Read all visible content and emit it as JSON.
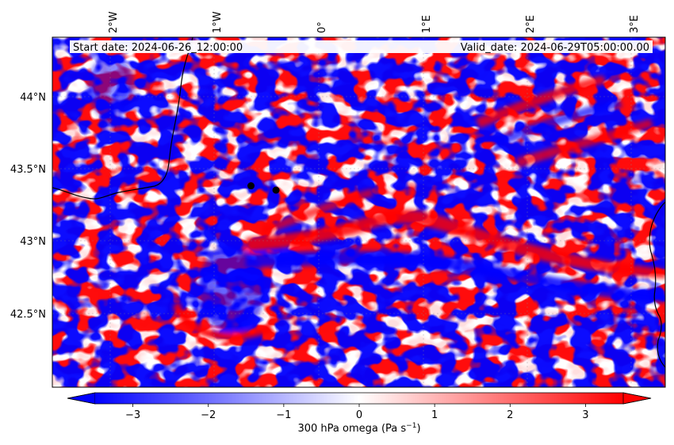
{
  "map": {
    "start_date_label": "Start date: 2024-06-26_12:00:00",
    "valid_date_label": "Valid_date: 2024-06-29T05:00:00.00",
    "lon_ticks": [
      "2°W",
      "1°W",
      "0°",
      "1°E",
      "2°E",
      "3°E"
    ],
    "lat_ticks": [
      "44°N",
      "43.5°N",
      "43°N",
      "42.5°N"
    ],
    "points": [
      {
        "name": "marker-1",
        "lon": -0.65,
        "lat": 43.38
      },
      {
        "name": "marker-2",
        "lon": -0.41,
        "lat": 43.35
      }
    ]
  },
  "colorbar": {
    "ticks": [
      "−3",
      "−2",
      "−1",
      "0",
      "1",
      "2",
      "3"
    ],
    "label_main": "300 hPa omega (Pa s",
    "label_sup": "−1",
    "label_close": ")",
    "min_value": -3.5,
    "max_value": 3.5,
    "negative_color": "#0000ff",
    "positive_color": "#ff0000"
  }
}
